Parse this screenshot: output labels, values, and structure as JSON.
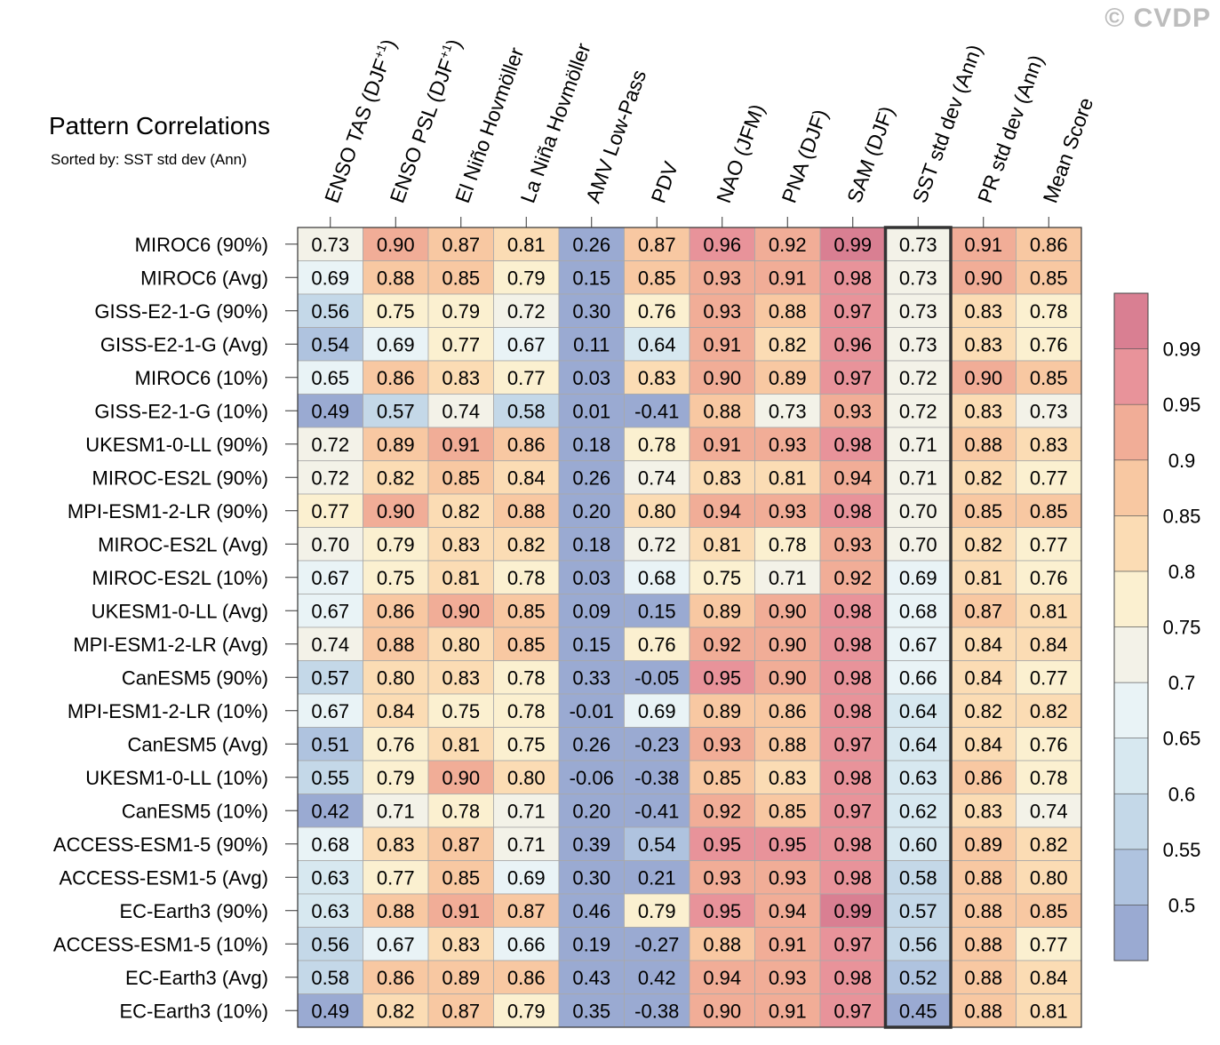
{
  "watermark": "© CVDP",
  "chart_data": {
    "type": "heatmap",
    "title": "Pattern Correlations",
    "subtitle": "Sorted by: SST std dev (Ann)",
    "columns": [
      "ENSO TAS (DJF+1)",
      "ENSO PSL (DJF+1)",
      "El Niño Hovmöller",
      "La Niña Hovmöller",
      "AMV Low-Pass",
      "PDV",
      "NAO (JFM)",
      "PNA (DJF)",
      "SAM (DJF)",
      "SST std dev (Ann)",
      "PR std dev (Ann)",
      "Mean Score"
    ],
    "column_superscripts": [
      "+1",
      "+1",
      "",
      "",
      "",
      "",
      "",
      "",
      "",
      "",
      "",
      ""
    ],
    "highlighted_column": "SST std dev (Ann)",
    "rows": [
      "MIROC6 (90%)",
      "MIROC6 (Avg)",
      "GISS-E2-1-G (90%)",
      "GISS-E2-1-G (Avg)",
      "MIROC6 (10%)",
      "GISS-E2-1-G (10%)",
      "UKESM1-0-LL (90%)",
      "MIROC-ES2L (90%)",
      "MPI-ESM1-2-LR (90%)",
      "MIROC-ES2L (Avg)",
      "MIROC-ES2L (10%)",
      "UKESM1-0-LL (Avg)",
      "MPI-ESM1-2-LR (Avg)",
      "CanESM5 (90%)",
      "MPI-ESM1-2-LR (10%)",
      "CanESM5 (Avg)",
      "UKESM1-0-LL (10%)",
      "CanESM5 (10%)",
      "ACCESS-ESM1-5 (90%)",
      "ACCESS-ESM1-5 (Avg)",
      "EC-Earth3 (90%)",
      "ACCESS-ESM1-5 (10%)",
      "EC-Earth3 (Avg)",
      "EC-Earth3 (10%)"
    ],
    "values": [
      [
        "0.73",
        "0.90",
        "0.87",
        "0.81",
        "0.26",
        "0.87",
        "0.96",
        "0.92",
        "0.99",
        "0.73",
        "0.91",
        "0.86"
      ],
      [
        "0.69",
        "0.88",
        "0.85",
        "0.79",
        "0.15",
        "0.85",
        "0.93",
        "0.91",
        "0.98",
        "0.73",
        "0.90",
        "0.85"
      ],
      [
        "0.56",
        "0.75",
        "0.79",
        "0.72",
        "0.30",
        "0.76",
        "0.93",
        "0.88",
        "0.97",
        "0.73",
        "0.83",
        "0.78"
      ],
      [
        "0.54",
        "0.69",
        "0.77",
        "0.67",
        "0.11",
        "0.64",
        "0.91",
        "0.82",
        "0.96",
        "0.73",
        "0.83",
        "0.76"
      ],
      [
        "0.65",
        "0.86",
        "0.83",
        "0.77",
        "0.03",
        "0.83",
        "0.90",
        "0.89",
        "0.97",
        "0.72",
        "0.90",
        "0.85"
      ],
      [
        "0.49",
        "0.57",
        "0.74",
        "0.58",
        "0.01",
        "-0.41",
        "0.88",
        "0.73",
        "0.93",
        "0.72",
        "0.83",
        "0.73"
      ],
      [
        "0.72",
        "0.89",
        "0.91",
        "0.86",
        "0.18",
        "0.78",
        "0.91",
        "0.93",
        "0.98",
        "0.71",
        "0.88",
        "0.83"
      ],
      [
        "0.72",
        "0.82",
        "0.85",
        "0.84",
        "0.26",
        "0.74",
        "0.83",
        "0.81",
        "0.94",
        "0.71",
        "0.82",
        "0.77"
      ],
      [
        "0.77",
        "0.90",
        "0.82",
        "0.88",
        "0.20",
        "0.80",
        "0.94",
        "0.93",
        "0.98",
        "0.70",
        "0.85",
        "0.85"
      ],
      [
        "0.70",
        "0.79",
        "0.83",
        "0.82",
        "0.18",
        "0.72",
        "0.81",
        "0.78",
        "0.93",
        "0.70",
        "0.82",
        "0.77"
      ],
      [
        "0.67",
        "0.75",
        "0.81",
        "0.78",
        "0.03",
        "0.68",
        "0.75",
        "0.71",
        "0.92",
        "0.69",
        "0.81",
        "0.76"
      ],
      [
        "0.67",
        "0.86",
        "0.90",
        "0.85",
        "0.09",
        "0.15",
        "0.89",
        "0.90",
        "0.98",
        "0.68",
        "0.87",
        "0.81"
      ],
      [
        "0.74",
        "0.88",
        "0.80",
        "0.85",
        "0.15",
        "0.76",
        "0.92",
        "0.90",
        "0.98",
        "0.67",
        "0.84",
        "0.84"
      ],
      [
        "0.57",
        "0.80",
        "0.83",
        "0.78",
        "0.33",
        "-0.05",
        "0.95",
        "0.90",
        "0.98",
        "0.66",
        "0.84",
        "0.77"
      ],
      [
        "0.67",
        "0.84",
        "0.75",
        "0.78",
        "-0.01",
        "0.69",
        "0.89",
        "0.86",
        "0.98",
        "0.64",
        "0.82",
        "0.82"
      ],
      [
        "0.51",
        "0.76",
        "0.81",
        "0.75",
        "0.26",
        "-0.23",
        "0.93",
        "0.88",
        "0.97",
        "0.64",
        "0.84",
        "0.76"
      ],
      [
        "0.55",
        "0.79",
        "0.90",
        "0.80",
        "-0.06",
        "-0.38",
        "0.85",
        "0.83",
        "0.98",
        "0.63",
        "0.86",
        "0.78"
      ],
      [
        "0.42",
        "0.71",
        "0.78",
        "0.71",
        "0.20",
        "-0.41",
        "0.92",
        "0.85",
        "0.97",
        "0.62",
        "0.83",
        "0.74"
      ],
      [
        "0.68",
        "0.83",
        "0.87",
        "0.71",
        "0.39",
        "0.54",
        "0.95",
        "0.95",
        "0.98",
        "0.60",
        "0.89",
        "0.82"
      ],
      [
        "0.63",
        "0.77",
        "0.85",
        "0.69",
        "0.30",
        "0.21",
        "0.93",
        "0.93",
        "0.98",
        "0.58",
        "0.88",
        "0.80"
      ],
      [
        "0.63",
        "0.88",
        "0.91",
        "0.87",
        "0.46",
        "0.79",
        "0.95",
        "0.94",
        "0.99",
        "0.57",
        "0.88",
        "0.85"
      ],
      [
        "0.56",
        "0.67",
        "0.83",
        "0.66",
        "0.19",
        "-0.27",
        "0.88",
        "0.91",
        "0.97",
        "0.56",
        "0.88",
        "0.77"
      ],
      [
        "0.58",
        "0.86",
        "0.89",
        "0.86",
        "0.43",
        "0.42",
        "0.94",
        "0.93",
        "0.98",
        "0.52",
        "0.88",
        "0.84"
      ],
      [
        "0.49",
        "0.82",
        "0.87",
        "0.79",
        "0.35",
        "-0.38",
        "0.90",
        "0.91",
        "0.97",
        "0.45",
        "0.88",
        "0.81"
      ]
    ],
    "colorbar": {
      "bounds": [
        0.5,
        0.55,
        0.6,
        0.65,
        0.7,
        0.75,
        0.8,
        0.85,
        0.9,
        0.95,
        0.99
      ],
      "labels": [
        "0.5",
        "0.55",
        "0.6",
        "0.65",
        "0.7",
        "0.75",
        "0.8",
        "0.85",
        "0.9",
        "0.95",
        "0.99"
      ],
      "colors": [
        "#9aaad2",
        "#afc3df",
        "#c4d8e8",
        "#d7e8f0",
        "#e9f3f6",
        "#f3f2e8",
        "#fbf0d0",
        "#fbdcb4",
        "#f8c8a2",
        "#f1ad97",
        "#e8939a",
        "#d97f92"
      ]
    }
  }
}
